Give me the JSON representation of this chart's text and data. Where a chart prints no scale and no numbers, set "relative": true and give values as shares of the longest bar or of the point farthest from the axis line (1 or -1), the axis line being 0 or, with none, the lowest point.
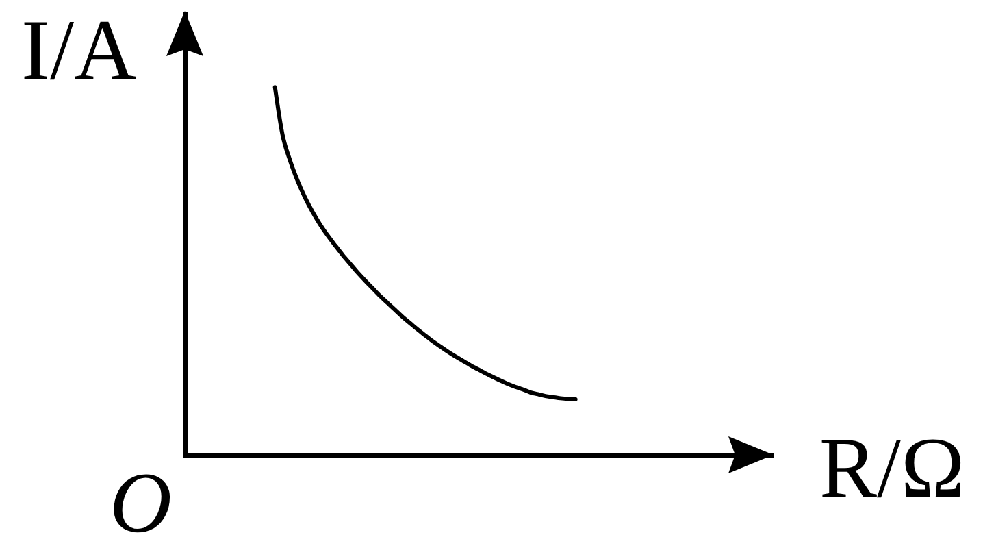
{
  "chart_data": {
    "type": "line",
    "xlabel": "R/Ω",
    "ylabel": "I/A",
    "annotations": [
      "O"
    ],
    "categories": [
      null,
      null,
      null,
      null,
      null,
      null,
      null,
      null,
      null,
      null,
      null,
      null,
      null,
      null,
      null,
      null,
      null,
      null,
      null,
      null,
      null,
      null,
      null,
      null,
      null,
      null,
      null,
      null,
      null,
      null,
      null,
      null,
      null,
      null,
      null,
      null,
      null,
      null,
      null,
      null,
      null,
      null,
      null,
      null,
      null,
      null,
      null,
      null,
      null,
      null,
      null,
      null,
      null,
      null,
      null,
      null,
      null,
      null,
      null,
      null,
      null,
      null,
      null,
      null,
      null,
      null,
      null,
      null,
      null,
      null,
      null,
      null,
      null,
      null,
      null,
      null,
      null,
      null,
      null
    ],
    "values": [
      null,
      null,
      null,
      null,
      null,
      null,
      null,
      null,
      null,
      null,
      null,
      null,
      1,
      0.871,
      0.801,
      0.746,
      0.7,
      0.661,
      0.627,
      0.597,
      0.57,
      0.544,
      0.52,
      0.496,
      0.474,
      0.453,
      0.432,
      0.413,
      0.394,
      0.375,
      0.358,
      0.341,
      0.325,
      0.309,
      0.295,
      0.281,
      0.268,
      0.256,
      0.244,
      0.233,
      0.222,
      0.212,
      0.202,
      0.193,
      0.185,
      0.178,
      0.17,
      0.165,
      0.16,
      0.157,
      0.154,
      0.152,
      0.151,
      null,
      null,
      null,
      null,
      null,
      null,
      null,
      null,
      null,
      null,
      null,
      null,
      null,
      null,
      null,
      null,
      null,
      null,
      null,
      null,
      null,
      null,
      null,
      null,
      null,
      null
    ],
    "color": "#000000",
    "relative": true
  }
}
